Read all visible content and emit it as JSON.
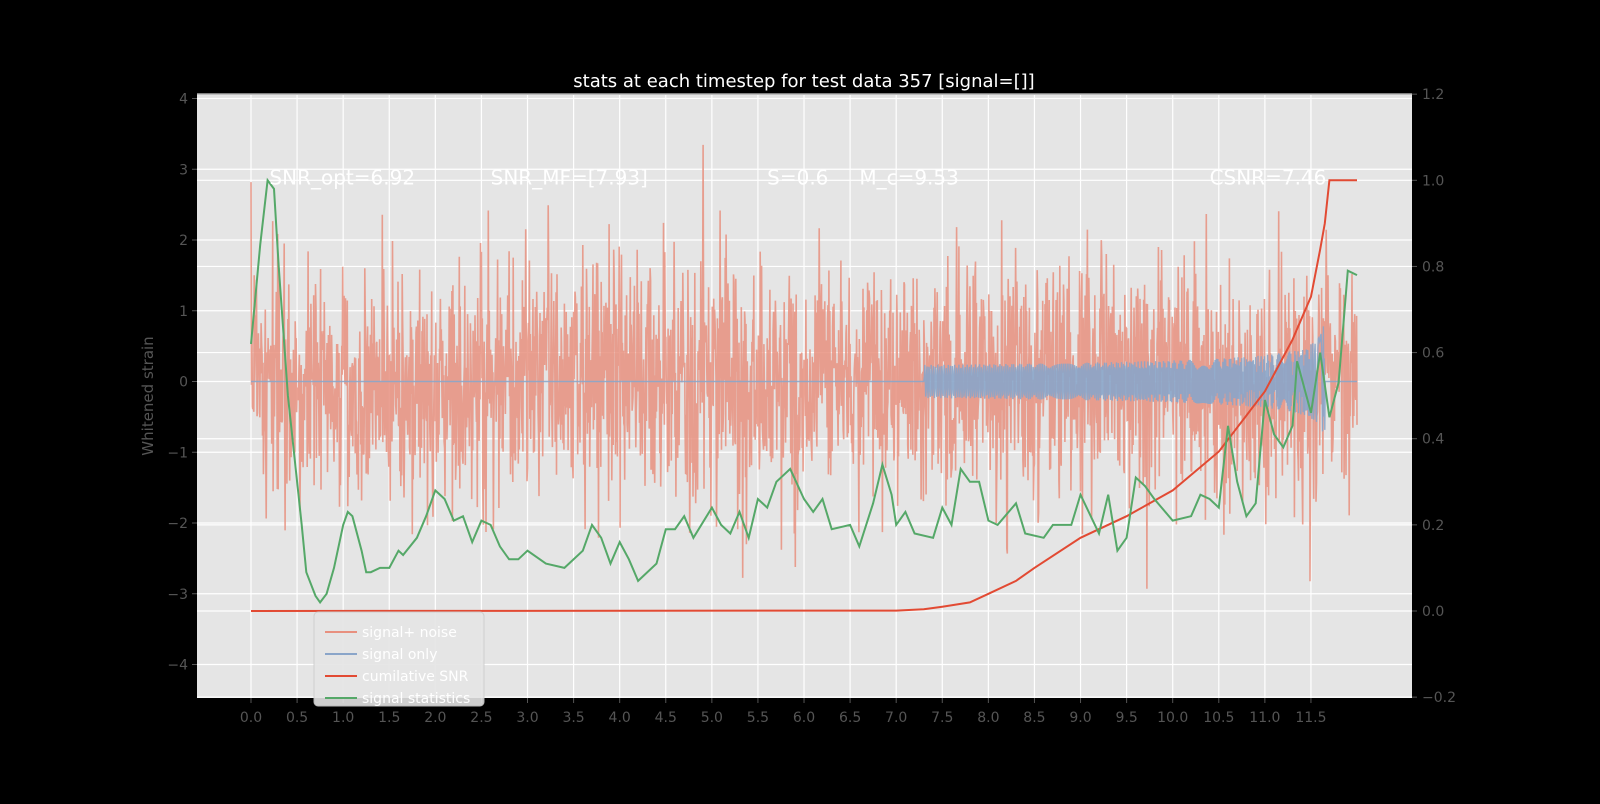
{
  "chart_data": {
    "type": "line",
    "title": "stats at each timestep for test data 357 [signal=[]]",
    "xlabel": "",
    "ylabel": "Whitened strain",
    "ylabel_right": "",
    "xlim": [
      -0.6,
      12.6
    ],
    "ylim": [
      -4.5,
      4.05
    ],
    "ylim_right": [
      -0.2,
      1.2
    ],
    "x_ticks": [
      "0.0",
      "0.5",
      "1.0",
      "1.5",
      "2.0",
      "2.5",
      "3.0",
      "3.5",
      "4.0",
      "4.5",
      "5.0",
      "5.5",
      "6.0",
      "6.5",
      "7.0",
      "7.5",
      "8.0",
      "8.5",
      "9.0",
      "9.5",
      "10.0",
      "10.5",
      "11.0",
      "11.5"
    ],
    "y_ticks": [
      "4",
      "3",
      "2",
      "1",
      "0",
      "−1",
      "−2",
      "−3",
      "−4"
    ],
    "y_ticks_right": [
      "1.2",
      "1.0",
      "0.8",
      "0.6",
      "0.4",
      "0.2",
      "0.0",
      "−0.2"
    ],
    "grid": true,
    "legend_position": "lower-left",
    "annotations": [
      {
        "text": "SNR_opt=6.92",
        "x": 0.2,
        "y": 2.9
      },
      {
        "text": "SNR_MF=[7.93]",
        "x": 2.6,
        "y": 2.9
      },
      {
        "text": "S=0.6",
        "x": 5.6,
        "y": 2.9
      },
      {
        "text": "M_c=9.53",
        "x": 6.6,
        "y": 2.9
      },
      {
        "text": "CSNR=7.46",
        "x": 10.4,
        "y": 2.9
      }
    ],
    "series": [
      {
        "name": "signal+ noise",
        "axis": "left",
        "color": "#e8907f",
        "description_range": [
          -3.3,
          3.7
        ],
        "x_range": [
          0,
          12.0
        ]
      },
      {
        "name": "signal only",
        "axis": "left",
        "color": "#8aa5c9",
        "x_range": [
          0,
          12.0
        ],
        "peak_amplitude": 1.0,
        "peak_time": 11.65
      },
      {
        "name": "cumilative SNR",
        "axis": "right",
        "color": "#e24a33",
        "x": [
          0,
          7.0,
          7.3,
          7.5,
          7.8,
          8.0,
          8.3,
          8.5,
          9.0,
          9.5,
          10.0,
          10.5,
          11.0,
          11.3,
          11.5,
          11.6,
          11.65,
          11.7,
          12.0
        ],
        "y": [
          0,
          0.001,
          0.004,
          0.01,
          0.02,
          0.04,
          0.07,
          0.1,
          0.17,
          0.22,
          0.28,
          0.37,
          0.51,
          0.63,
          0.73,
          0.84,
          0.9,
          1.0,
          1.0
        ]
      },
      {
        "name": "signal statistics",
        "axis": "right",
        "color": "#55a868",
        "x": [
          0,
          0.1,
          0.18,
          0.25,
          0.3,
          0.4,
          0.5,
          0.55,
          0.6,
          0.7,
          0.75,
          0.82,
          0.9,
          1.0,
          1.05,
          1.1,
          1.2,
          1.25,
          1.3,
          1.4,
          1.5,
          1.6,
          1.65,
          1.8,
          1.9,
          2.0,
          2.1,
          2.2,
          2.3,
          2.4,
          2.5,
          2.6,
          2.7,
          2.8,
          2.9,
          3.0,
          3.2,
          3.4,
          3.6,
          3.7,
          3.8,
          3.9,
          4.0,
          4.1,
          4.2,
          4.4,
          4.5,
          4.6,
          4.7,
          4.8,
          5.0,
          5.1,
          5.2,
          5.3,
          5.4,
          5.5,
          5.6,
          5.7,
          5.85,
          6.0,
          6.1,
          6.2,
          6.3,
          6.5,
          6.6,
          6.75,
          6.85,
          6.95,
          7.0,
          7.1,
          7.2,
          7.4,
          7.5,
          7.6,
          7.7,
          7.8,
          7.9,
          8.0,
          8.1,
          8.3,
          8.4,
          8.6,
          8.7,
          8.9,
          9.0,
          9.2,
          9.3,
          9.4,
          9.5,
          9.6,
          9.7,
          9.8,
          10.0,
          10.2,
          10.3,
          10.4,
          10.5,
          10.6,
          10.7,
          10.8,
          10.9,
          11.0,
          11.1,
          11.2,
          11.3,
          11.35,
          11.5,
          11.6,
          11.7,
          11.8,
          11.9,
          12.0
        ],
        "y": [
          0.62,
          0.85,
          1.0,
          0.98,
          0.8,
          0.5,
          0.3,
          0.2,
          0.09,
          0.035,
          0.02,
          0.04,
          0.1,
          0.2,
          0.23,
          0.22,
          0.14,
          0.09,
          0.09,
          0.1,
          0.1,
          0.14,
          0.13,
          0.17,
          0.22,
          0.28,
          0.26,
          0.21,
          0.22,
          0.16,
          0.21,
          0.2,
          0.15,
          0.12,
          0.12,
          0.14,
          0.11,
          0.1,
          0.14,
          0.2,
          0.17,
          0.11,
          0.16,
          0.12,
          0.07,
          0.11,
          0.19,
          0.19,
          0.22,
          0.17,
          0.24,
          0.2,
          0.18,
          0.23,
          0.17,
          0.26,
          0.24,
          0.3,
          0.33,
          0.26,
          0.23,
          0.26,
          0.19,
          0.2,
          0.15,
          0.25,
          0.34,
          0.27,
          0.2,
          0.23,
          0.18,
          0.17,
          0.24,
          0.2,
          0.33,
          0.3,
          0.3,
          0.21,
          0.2,
          0.25,
          0.18,
          0.17,
          0.2,
          0.2,
          0.27,
          0.18,
          0.27,
          0.14,
          0.17,
          0.31,
          0.29,
          0.26,
          0.21,
          0.22,
          0.27,
          0.26,
          0.24,
          0.43,
          0.3,
          0.22,
          0.25,
          0.49,
          0.41,
          0.38,
          0.43,
          0.58,
          0.46,
          0.6,
          0.45,
          0.53,
          0.79,
          0.78
        ]
      }
    ]
  }
}
